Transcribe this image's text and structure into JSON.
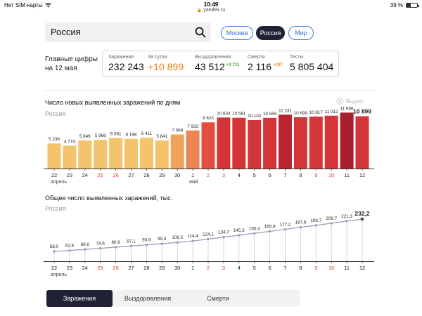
{
  "statusbar": {
    "carrier": "Нет SIM-карты",
    "time": "10:49",
    "url": "yandex.ru",
    "battery": "39 %",
    "battery_level": 0.39
  },
  "search": {
    "value": "Россия"
  },
  "region_tabs": [
    "Москва",
    "Россия",
    "Мир"
  ],
  "key_figures": {
    "title": "Главные цифры на 12 мая",
    "items": [
      {
        "label": "Заражения",
        "value": "232 243",
        "delta": ""
      },
      {
        "label": "За сутки",
        "value": "+10 899",
        "delta": ""
      },
      {
        "label": "Выздоровления",
        "value": "43 512",
        "delta": "+3 711"
      },
      {
        "label": "Смерти",
        "value": "2 116",
        "delta": "+107"
      },
      {
        "label": "Тесты",
        "value": "5 805 404",
        "delta": ""
      }
    ]
  },
  "watermark": "Яндекс",
  "chart_data": [
    {
      "type": "bar",
      "title": "Число новых выявленных заражений по дням",
      "subtitle": "Россия",
      "categories": [
        "22",
        "23",
        "24",
        "25",
        "26",
        "27",
        "28",
        "29",
        "30",
        "1",
        "2",
        "3",
        "4",
        "5",
        "6",
        "7",
        "8",
        "9",
        "10",
        "11",
        "12"
      ],
      "month_labels": [
        "апрель",
        "май"
      ],
      "weekend_days": [
        "25",
        "26",
        "2",
        "3",
        "9",
        "10"
      ],
      "values": [
        5236,
        4774,
        5849,
        5966,
        6361,
        6198,
        6411,
        5841,
        7099,
        7933,
        9623,
        10633,
        10581,
        10102,
        10559,
        11231,
        10699,
        10817,
        11012,
        11656,
        10899
      ],
      "value_labels": [
        "5 236",
        "4 774",
        "5 849",
        "5 966",
        "6 361",
        "6 198",
        "6 411",
        "5 841",
        "7 099",
        "7 933",
        "9 623",
        "10 633",
        "10 581",
        "10 102",
        "10 559",
        "11 231",
        "10 699",
        "10 817",
        "11 012",
        "11 656",
        "10 899"
      ],
      "ylim": [
        0,
        12000
      ],
      "grid": false,
      "colors": [
        "#f3c46b",
        "#f3c46b",
        "#f3c46b",
        "#f3c46b",
        "#f3c46b",
        "#f3c46b",
        "#f3c46b",
        "#f3c46b",
        "#f0a25a",
        "#ec8551",
        "#e1503f",
        "#d33539",
        "#d33539",
        "#d33539",
        "#d33539",
        "#b82530",
        "#d33539",
        "#d33539",
        "#d33539",
        "#a51f2c",
        "#d33539"
      ]
    },
    {
      "type": "line",
      "title": "Общее число выявленных заражений, тыс.",
      "subtitle": "Россия",
      "categories": [
        "22",
        "23",
        "24",
        "25",
        "26",
        "27",
        "28",
        "29",
        "30",
        "1",
        "2",
        "3",
        "4",
        "5",
        "6",
        "7",
        "8",
        "9",
        "10",
        "11",
        "12"
      ],
      "month_labels": [
        "апрель",
        "май"
      ],
      "weekend_days": [
        "25",
        "26",
        "2",
        "3",
        "9",
        "10"
      ],
      "values": [
        58.0,
        62.8,
        68.6,
        74.6,
        80.9,
        87.1,
        93.6,
        99.4,
        106.5,
        114.4,
        124.1,
        134.7,
        145.3,
        155.4,
        165.9,
        177.2,
        187.9,
        198.7,
        209.7,
        221.3,
        232.2
      ],
      "value_labels": [
        "58,0",
        "62,8",
        "68,6",
        "74,6",
        "80,9",
        "87,1",
        "93,6",
        "99,4",
        "106,5",
        "114,4",
        "124,1",
        "134,7",
        "145,3",
        "155,4",
        "165,9",
        "177,2",
        "187,9",
        "198,7",
        "209,7",
        "221,3",
        "232,2"
      ],
      "ylim": [
        0,
        250
      ],
      "grid": false,
      "line_color": "#9aa0b8"
    }
  ],
  "bottom_tabs": [
    "Заражения",
    "Выздоровления",
    "Смерти"
  ]
}
